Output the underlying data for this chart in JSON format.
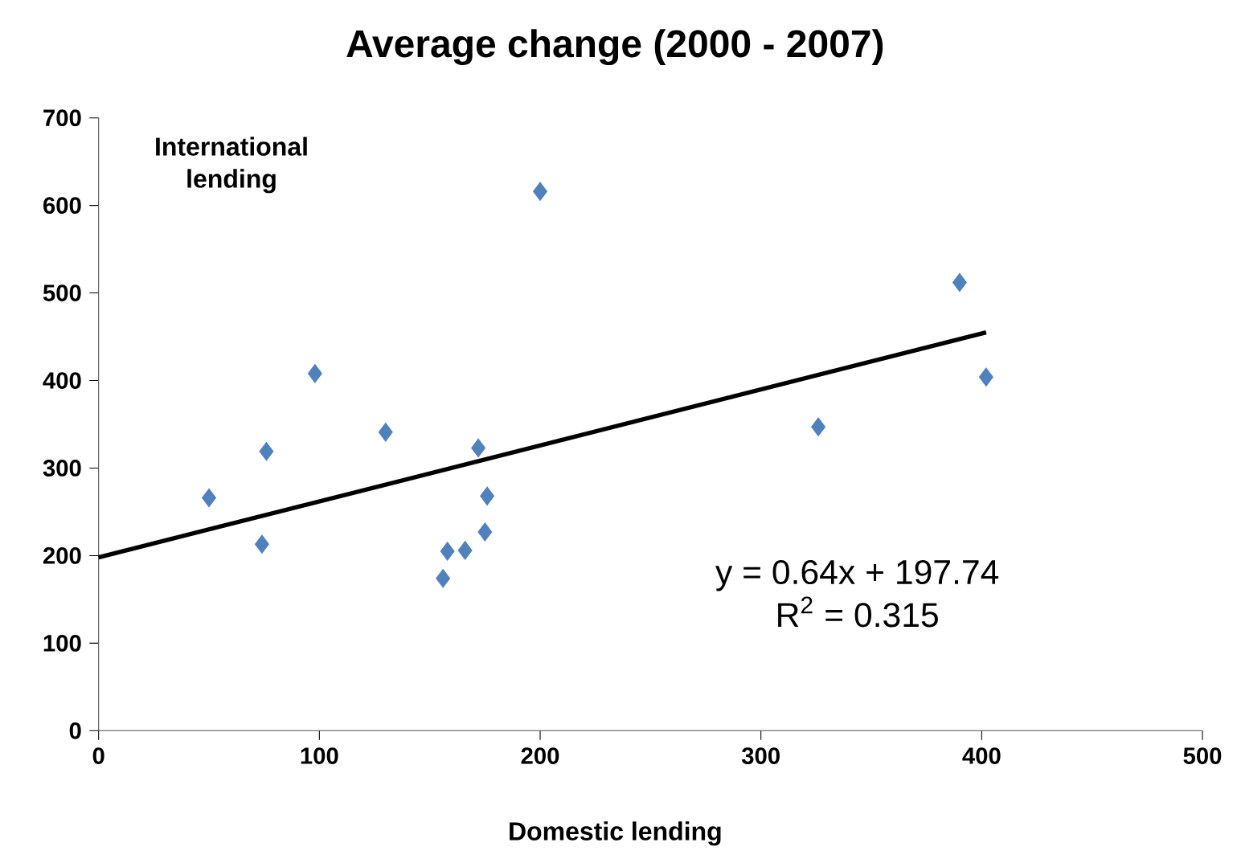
{
  "chart_data": {
    "type": "scatter",
    "title": "Average change (2000 - 2007)",
    "xlabel": "Domestic lending",
    "ylabel": "International lending",
    "annotations": [
      "y = 0.64x + 197.74",
      "R$^{2}$ = 0.315"
    ],
    "series": [
      {
        "color": "#4f81bd",
        "marker": "diamond",
        "x": [
          50,
          74,
          76,
          98,
          130,
          200,
          172,
          176,
          175,
          158,
          166,
          156,
          326,
          390,
          402
        ],
        "values": [
          266,
          213,
          319,
          408,
          341,
          616,
          323,
          268,
          227,
          205,
          206,
          174,
          347,
          512,
          404
        ]
      },
      {
        "type": "line",
        "color": "#000000",
        "x": [
          0,
          402
        ],
        "values": [
          198,
          455
        ]
      }
    ],
    "xlim": [
      0,
      500
    ],
    "ylim": [
      0,
      700
    ],
    "xticks": [
      0,
      100,
      200,
      300,
      400,
      500
    ],
    "yticks": [
      0,
      100,
      200,
      300,
      400,
      500,
      600,
      700
    ],
    "grid": false
  }
}
